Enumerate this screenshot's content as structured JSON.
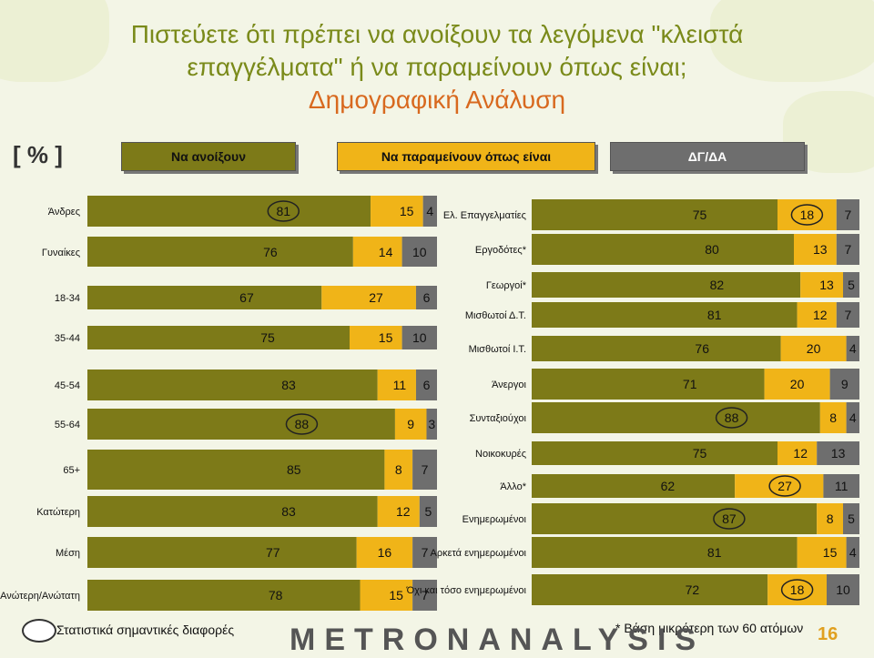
{
  "title": {
    "line1": "Πιστεύετε ότι πρέπει να ανοίξουν τα λεγόμενα \"κλειστά",
    "line2": "επαγγέλματα\" ή να παραμείνουν όπως είναι;",
    "line3": "Δημογραφική Ανάλυση"
  },
  "pct_label": "[ % ]",
  "legend": {
    "open": "Να ανοίξουν",
    "remain": "Να παραμείνουν όπως είναι",
    "dk": "ΔΓ/ΔΑ"
  },
  "colors": {
    "open": "#7d7a18",
    "remain": "#f0b418",
    "dk": "#6e6e6e"
  },
  "footer": {
    "significance": "Στατιστικά σημαντικές διαφορές",
    "base_note": "* Βάση μικρότερη των 60 ατόμων",
    "logo": "METRONANALYSIS",
    "page": "16"
  },
  "chart_data": [
    {
      "type": "bar",
      "stacked": true,
      "orientation": "horizontal",
      "categories": [
        "Άνδρες",
        "Γυναίκες",
        "18-34",
        "35-44",
        "45-54",
        "55-64",
        "65+",
        "Κατώτερη",
        "Μέση",
        "Ανώτερη/Ανώτατη"
      ],
      "series": [
        {
          "name": "Να ανοίξουν",
          "values": [
            81,
            76,
            67,
            75,
            83,
            88,
            85,
            83,
            77,
            78
          ]
        },
        {
          "name": "Να παραμείνουν όπως είναι",
          "values": [
            15,
            14,
            27,
            15,
            11,
            9,
            8,
            12,
            16,
            15
          ]
        },
        {
          "name": "ΔΓ/ΔΑ",
          "values": [
            4,
            10,
            6,
            10,
            6,
            3,
            7,
            5,
            7,
            7
          ]
        }
      ],
      "circled": [
        "81",
        "88"
      ]
    },
    {
      "type": "bar",
      "stacked": true,
      "orientation": "horizontal",
      "categories": [
        "Ελ. Επαγγελματίες",
        "Εργοδότες*",
        "Γεωργοί*",
        "Μισθωτοί Δ.Τ.",
        "Μισθωτοί Ι.Τ.",
        "Άνεργοι",
        "Συνταξιούχοι",
        "Νοικοκυρές",
        "Άλλο*",
        "Ενημερωμένοι",
        "Αρκετά ενημερωμένοι",
        "Όχι και τόσο ενημερωμένοι"
      ],
      "series": [
        {
          "name": "Να ανοίξουν",
          "values": [
            75,
            80,
            82,
            81,
            76,
            71,
            88,
            75,
            62,
            87,
            81,
            72
          ]
        },
        {
          "name": "Να παραμείνουν όπως είναι",
          "values": [
            18,
            13,
            13,
            12,
            20,
            20,
            8,
            12,
            27,
            8,
            15,
            18
          ]
        },
        {
          "name": "ΔΓ/ΔΑ",
          "values": [
            7,
            7,
            5,
            7,
            4,
            9,
            4,
            13,
            11,
            5,
            4,
            10
          ]
        }
      ],
      "circled": [
        "88",
        "87",
        "27",
        "18"
      ]
    }
  ]
}
